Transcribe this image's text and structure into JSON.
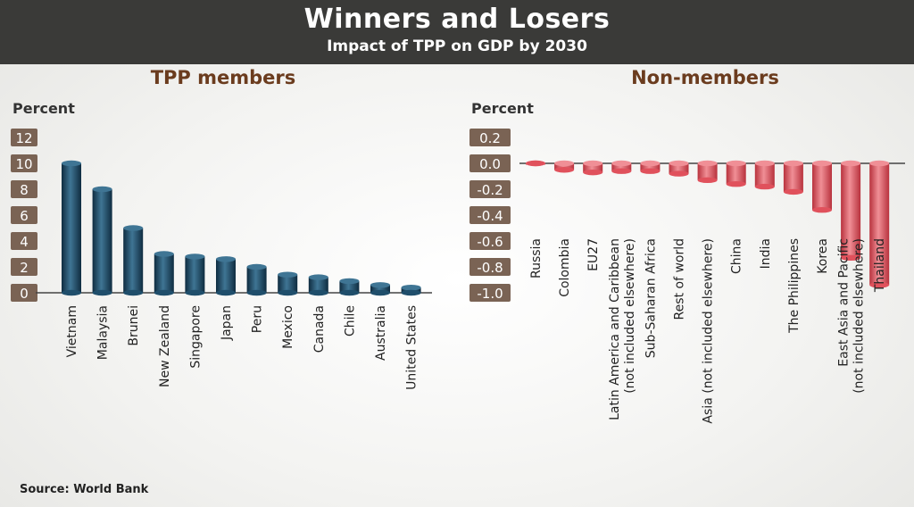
{
  "header": {
    "title": "Winners and Losers",
    "subtitle": "Impact of TPP on GDP by 2030"
  },
  "source": "Source: World Bank",
  "colors": {
    "header_bg": "#3a3a38",
    "panel_title": "#6b3c1e",
    "tick_badge": "#7a6354",
    "members_bar": "#1f4e6b",
    "members_bar_light": "#3f7594",
    "members_bar_dark": "#0f2c40",
    "nonmembers_bar": "#e0515c",
    "nonmembers_bar_light": "#f08f96",
    "nonmembers_bar_dark": "#b8323d"
  },
  "chart_data": [
    {
      "type": "bar",
      "title": "TPP  members",
      "ylabel": "Percent",
      "ylim": [
        0,
        12
      ],
      "yticks": [
        "12",
        "10",
        "8",
        "6",
        "4",
        "2",
        "0"
      ],
      "ytick_values": [
        12,
        10,
        8,
        6,
        4,
        2,
        0
      ],
      "categories": [
        "Vietnam",
        "Malaysia",
        "Brunei",
        "New Zealand",
        "Singapore",
        "Japan",
        "Peru",
        "Mexico",
        "Canada",
        "Chile",
        "Australia",
        "United States"
      ],
      "values": [
        10.0,
        8.0,
        5.0,
        3.0,
        2.8,
        2.6,
        2.0,
        1.4,
        1.2,
        0.9,
        0.6,
        0.4
      ],
      "grid": false
    },
    {
      "type": "bar",
      "title": "Non-members",
      "ylabel": "Percent",
      "ylim": [
        -1.0,
        0.2
      ],
      "yticks": [
        "0.2",
        "0.0",
        "-0.2",
        "-0.4",
        "-0.6",
        "-0.8",
        "-1.0"
      ],
      "ytick_values": [
        0.2,
        0.0,
        -0.2,
        -0.4,
        -0.6,
        -0.8,
        -1.0
      ],
      "categories": [
        "Russia",
        "Colombia",
        "EU27",
        "Latin America and Caribbean|(not included elsewhere)",
        "Sub-Saharan Africa",
        "Rest of world",
        "Asia (not included elsewhere)",
        "China",
        "India",
        "The Philippines",
        "Korea",
        "East Asia and Pacific|(not included elsewhere)",
        "Thailand"
      ],
      "values": [
        0.0,
        -0.05,
        -0.07,
        -0.06,
        -0.06,
        -0.08,
        -0.13,
        -0.16,
        -0.18,
        -0.22,
        -0.36,
        -0.73,
        -0.94
      ],
      "grid": false
    }
  ]
}
